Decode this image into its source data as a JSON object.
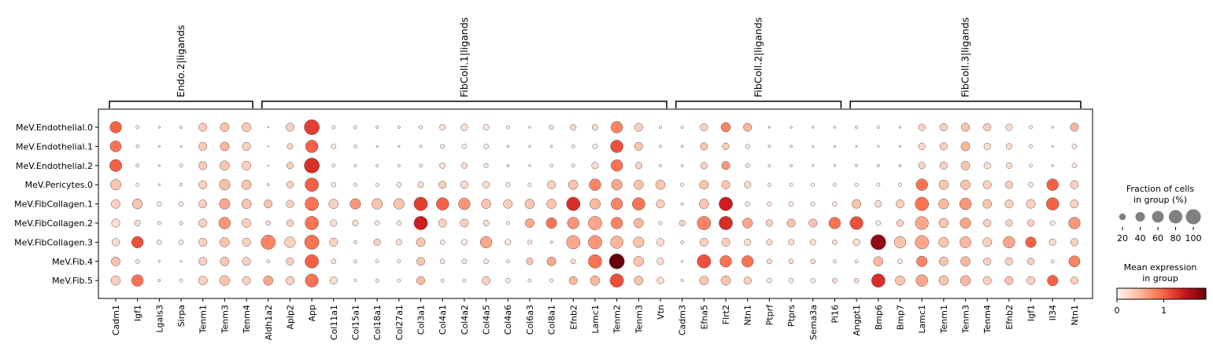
{
  "chart_data": {
    "type": "dotplot",
    "rows": [
      "MeV.Endothelial.0",
      "MeV.Endothelial.1",
      "MeV.Endothelial.2",
      "MeV.Pericytes.0",
      "MeV.FibCollagen.1",
      "MeV.FibCollagen.2",
      "MeV.FibCollagen.3",
      "MeV.Fib.4",
      "MeV.Fib.5"
    ],
    "groups": [
      {
        "name": "Endo.2|ligands",
        "genes": [
          "Cadm1",
          "Igf1",
          "Lgals3",
          "Sirpa",
          "Tenm1",
          "Tenm3",
          "Tenm4"
        ]
      },
      {
        "name": "FibColl.1|ligands",
        "genes": [
          "Aldh1a2",
          "Aplp2",
          "App",
          "Col11a1",
          "Col15a1",
          "Col18a1",
          "Col27a1",
          "Col3a1",
          "Col4a1",
          "Col4a2",
          "Col4a5",
          "Col4a6",
          "Col6a3",
          "Col8a1",
          "Efnb2",
          "Lamc1",
          "Tenm2",
          "Tenm3",
          "Vtn"
        ]
      },
      {
        "name": "FibColl.2|ligands",
        "genes": [
          "Cadm3",
          "Efna5",
          "Flrt2",
          "Ntn1",
          "Ptprf",
          "Ptprs",
          "Sema3a",
          "Pi16"
        ]
      },
      {
        "name": "FibColl.3|ligands",
        "genes": [
          "Angpt1",
          "Bmp6",
          "Bmp7",
          "Lamc1",
          "Tenm1",
          "Tenm3",
          "Tenm4",
          "Efnb2",
          "Igf1",
          "Il34",
          "Ntn1"
        ]
      }
    ],
    "fraction_pct": [
      [
        60,
        5,
        2,
        3,
        30,
        35,
        35,
        1,
        30,
        100,
        5,
        5,
        3,
        3,
        5,
        15,
        20,
        15,
        5,
        2,
        8,
        15,
        15,
        60,
        30,
        3,
        3,
        25,
        40,
        30,
        2,
        2,
        2,
        2,
        3,
        3,
        2,
        20,
        25,
        30,
        25,
        20,
        5,
        2,
        30
      ],
      [
        55,
        4,
        2,
        2,
        30,
        35,
        30,
        1,
        15,
        70,
        10,
        5,
        2,
        2,
        3,
        8,
        10,
        10,
        3,
        2,
        3,
        5,
        10,
        70,
        30,
        3,
        3,
        25,
        20,
        8,
        3,
        3,
        2,
        2,
        2,
        2,
        2,
        20,
        25,
        35,
        20,
        15,
        5,
        2,
        10
      ],
      [
        65,
        5,
        2,
        5,
        30,
        40,
        35,
        1,
        20,
        100,
        5,
        3,
        3,
        3,
        5,
        15,
        15,
        8,
        3,
        2,
        5,
        5,
        20,
        60,
        20,
        3,
        3,
        20,
        30,
        8,
        3,
        3,
        2,
        2,
        3,
        3,
        3,
        20,
        25,
        35,
        20,
        15,
        5,
        2,
        10
      ],
      [
        50,
        5,
        2,
        4,
        30,
        50,
        40,
        3,
        20,
        80,
        10,
        5,
        5,
        10,
        15,
        25,
        25,
        20,
        10,
        5,
        30,
        40,
        60,
        50,
        40,
        40,
        5,
        35,
        30,
        20,
        5,
        5,
        5,
        5,
        5,
        5,
        5,
        60,
        40,
        40,
        30,
        25,
        10,
        60,
        30
      ],
      [
        35,
        45,
        10,
        10,
        30,
        50,
        40,
        30,
        25,
        80,
        40,
        50,
        50,
        50,
        80,
        70,
        60,
        40,
        35,
        40,
        40,
        80,
        50,
        60,
        70,
        30,
        3,
        40,
        80,
        10,
        8,
        10,
        8,
        10,
        35,
        20,
        30,
        80,
        45,
        60,
        35,
        30,
        35,
        70,
        30
      ],
      [
        30,
        15,
        5,
        5,
        30,
        60,
        35,
        10,
        20,
        80,
        20,
        15,
        10,
        10,
        80,
        30,
        30,
        15,
        5,
        35,
        50,
        60,
        80,
        60,
        40,
        5,
        15,
        80,
        80,
        45,
        20,
        30,
        30,
        60,
        75,
        10,
        20,
        75,
        40,
        50,
        25,
        20,
        20,
        10,
        60
      ],
      [
        25,
        60,
        10,
        10,
        30,
        40,
        30,
        90,
        50,
        90,
        30,
        5,
        20,
        15,
        35,
        10,
        15,
        60,
        15,
        8,
        3,
        80,
        80,
        70,
        50,
        25,
        5,
        30,
        30,
        20,
        15,
        15,
        15,
        10,
        20,
        100,
        60,
        80,
        45,
        55,
        35,
        60,
        50,
        20,
        25
      ],
      [
        35,
        8,
        2,
        2,
        30,
        35,
        30,
        5,
        25,
        80,
        10,
        5,
        5,
        5,
        30,
        10,
        10,
        10,
        5,
        20,
        35,
        10,
        80,
        100,
        45,
        20,
        2,
        80,
        60,
        60,
        10,
        10,
        10,
        5,
        5,
        40,
        10,
        50,
        35,
        40,
        25,
        25,
        20,
        5,
        55
      ],
      [
        40,
        60,
        3,
        5,
        35,
        45,
        30,
        40,
        30,
        75,
        25,
        3,
        5,
        5,
        30,
        5,
        5,
        30,
        10,
        5,
        5,
        30,
        40,
        80,
        35,
        20,
        3,
        35,
        40,
        25,
        10,
        10,
        10,
        10,
        10,
        80,
        40,
        60,
        40,
        45,
        30,
        30,
        30,
        50,
        25
      ]
    ],
    "mean_expression": [
      [
        1.0,
        0.1,
        0.05,
        0.05,
        0.35,
        0.4,
        0.35,
        0.05,
        0.3,
        1.2,
        0.1,
        0.1,
        0.05,
        0.05,
        0.05,
        0.2,
        0.2,
        0.1,
        0.05,
        0.05,
        0.1,
        0.2,
        0.2,
        0.8,
        0.3,
        0.05,
        0.05,
        0.3,
        0.8,
        0.5,
        0.05,
        0.05,
        0.05,
        0.05,
        0.05,
        0.05,
        0.05,
        0.3,
        0.3,
        0.4,
        0.3,
        0.2,
        0.05,
        0.05,
        0.5
      ],
      [
        0.9,
        0.05,
        0.05,
        0.05,
        0.35,
        0.5,
        0.3,
        0.05,
        0.25,
        1.0,
        0.1,
        0.05,
        0.05,
        0.05,
        0.05,
        0.1,
        0.1,
        0.1,
        0.05,
        0.05,
        0.05,
        0.05,
        0.1,
        1.1,
        0.4,
        0.05,
        0.05,
        0.4,
        0.3,
        0.1,
        0.05,
        0.05,
        0.05,
        0.05,
        0.05,
        0.05,
        0.05,
        0.25,
        0.3,
        0.5,
        0.2,
        0.2,
        0.05,
        0.05,
        0.1
      ],
      [
        1.0,
        0.1,
        0.05,
        0.05,
        0.35,
        0.4,
        0.3,
        0.05,
        0.3,
        1.3,
        0.05,
        0.05,
        0.05,
        0.05,
        0.05,
        0.2,
        0.2,
        0.1,
        0.05,
        0.05,
        0.1,
        0.1,
        0.2,
        0.9,
        0.3,
        0.05,
        0.05,
        0.3,
        0.7,
        0.1,
        0.05,
        0.05,
        0.05,
        0.05,
        0.05,
        0.05,
        0.05,
        0.3,
        0.3,
        0.4,
        0.2,
        0.2,
        0.05,
        0.05,
        0.1
      ],
      [
        0.4,
        0.05,
        0.05,
        0.05,
        0.3,
        0.45,
        0.4,
        0.05,
        0.3,
        1.0,
        0.1,
        0.05,
        0.05,
        0.1,
        0.2,
        0.3,
        0.2,
        0.2,
        0.1,
        0.1,
        0.3,
        0.4,
        0.8,
        0.6,
        0.4,
        0.4,
        0.05,
        0.4,
        0.4,
        0.2,
        0.05,
        0.05,
        0.05,
        0.05,
        0.05,
        0.05,
        0.05,
        0.9,
        0.4,
        0.4,
        0.3,
        0.3,
        0.1,
        1.0,
        0.3
      ],
      [
        0.3,
        0.4,
        0.1,
        0.1,
        0.3,
        0.6,
        0.4,
        0.4,
        0.3,
        0.9,
        0.3,
        0.7,
        0.4,
        0.4,
        1.2,
        1.0,
        0.7,
        0.4,
        0.3,
        0.4,
        0.4,
        1.3,
        0.5,
        0.8,
        0.9,
        0.3,
        0.05,
        0.4,
        1.4,
        0.1,
        0.1,
        0.1,
        0.1,
        0.1,
        0.4,
        0.2,
        0.3,
        0.9,
        0.5,
        0.7,
        0.4,
        0.3,
        0.3,
        1.0,
        0.3
      ],
      [
        0.2,
        0.2,
        0.1,
        0.1,
        0.3,
        0.7,
        0.3,
        0.2,
        0.3,
        0.9,
        0.2,
        0.2,
        0.1,
        0.1,
        1.4,
        0.3,
        0.3,
        0.2,
        0.1,
        0.6,
        0.9,
        0.7,
        0.6,
        0.8,
        0.5,
        0.1,
        0.3,
        0.8,
        1.3,
        0.6,
        0.3,
        0.4,
        0.4,
        0.9,
        1.1,
        0.1,
        0.3,
        0.6,
        0.4,
        0.6,
        0.3,
        0.3,
        0.3,
        0.1,
        0.7
      ],
      [
        0.2,
        1.1,
        0.1,
        0.1,
        0.3,
        0.4,
        0.3,
        0.8,
        0.3,
        0.9,
        0.3,
        0.1,
        0.3,
        0.2,
        0.4,
        0.1,
        0.1,
        0.6,
        0.1,
        0.1,
        0.1,
        0.6,
        0.7,
        0.5,
        0.4,
        0.2,
        0.05,
        0.3,
        0.3,
        0.2,
        0.2,
        0.2,
        0.2,
        0.2,
        0.2,
        1.7,
        0.4,
        0.6,
        0.4,
        0.5,
        0.3,
        0.6,
        1.0,
        0.2,
        0.3
      ],
      [
        0.4,
        0.1,
        0.05,
        0.05,
        0.3,
        0.4,
        0.3,
        0.1,
        0.3,
        1.0,
        0.1,
        0.1,
        0.1,
        0.1,
        0.4,
        0.1,
        0.1,
        0.1,
        0.1,
        0.4,
        0.6,
        0.2,
        0.9,
        1.9,
        0.4,
        0.2,
        0.05,
        1.1,
        0.9,
        0.9,
        0.2,
        0.2,
        0.2,
        0.1,
        0.1,
        0.5,
        0.1,
        0.8,
        0.4,
        0.5,
        0.3,
        0.3,
        0.3,
        0.1,
        0.8
      ],
      [
        0.3,
        0.9,
        0.05,
        0.05,
        0.3,
        0.4,
        0.3,
        0.6,
        0.3,
        0.9,
        0.2,
        0.05,
        0.1,
        0.1,
        0.5,
        0.1,
        0.1,
        0.3,
        0.1,
        0.1,
        0.1,
        0.5,
        0.5,
        1.1,
        0.4,
        0.2,
        0.05,
        0.4,
        0.4,
        0.3,
        0.1,
        0.1,
        0.1,
        0.2,
        0.2,
        1.3,
        0.4,
        0.6,
        0.4,
        0.5,
        0.3,
        0.4,
        0.3,
        1.0,
        0.3
      ]
    ],
    "size_legend": {
      "title": "Fraction of cells\nin group (%)",
      "values": [
        20,
        40,
        60,
        80,
        100
      ]
    },
    "color_legend": {
      "title": "Mean expression\nin group",
      "ticks": [
        0,
        1
      ],
      "vmax": 1.9
    },
    "colormap": [
      "#fff5f0",
      "#fcbba1",
      "#fb6a4a",
      "#cb181d",
      "#67000d"
    ]
  }
}
